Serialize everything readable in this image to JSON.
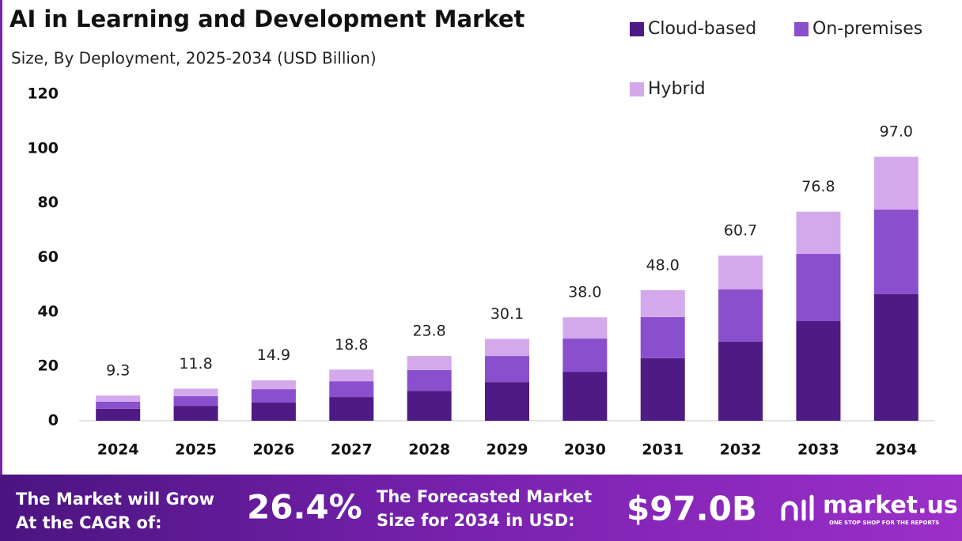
{
  "chart_data": {
    "type": "stacked-bar",
    "title": "AI in Learning and Development Market",
    "subtitle": "Size, By Deployment, 2025-2034 (USD Billion)",
    "categories": [
      "2024",
      "2025",
      "2026",
      "2027",
      "2028",
      "2029",
      "2030",
      "2031",
      "2032",
      "2033",
      "2034"
    ],
    "series": [
      {
        "name": "Cloud-based",
        "color": "#4e1a84",
        "values": [
          4.4,
          5.5,
          6.7,
          8.7,
          11.0,
          14.2,
          18.0,
          23.0,
          29.1,
          36.6,
          46.5
        ]
      },
      {
        "name": "On-premises",
        "color": "#8a4fcc",
        "values": [
          2.6,
          3.5,
          4.9,
          5.8,
          7.6,
          9.6,
          12.2,
          15.1,
          19.2,
          24.7,
          31.1
        ]
      },
      {
        "name": "Hybrid",
        "color": "#d4a9ec",
        "values": [
          2.3,
          2.8,
          3.3,
          4.3,
          5.2,
          6.3,
          7.8,
          9.9,
          12.4,
          15.5,
          19.4
        ]
      }
    ],
    "totals": {
      "values": [
        9.3,
        11.8,
        14.9,
        18.8,
        23.8,
        30.1,
        38.0,
        48.0,
        60.7,
        76.8,
        97.0
      ],
      "value_labels": [
        "9.3",
        "11.8",
        "14.9",
        "18.8",
        "23.8",
        "30.1",
        "38.0",
        "48.0",
        "60.7",
        "76.8",
        "97.0"
      ]
    },
    "ylim": [
      0,
      120
    ],
    "yticks": [
      0,
      20,
      40,
      60,
      80,
      100,
      120
    ],
    "grid": false,
    "legend": "top-right"
  },
  "footer": {
    "cagr_text": [
      "The Market will Grow",
      "At the CAGR of:"
    ],
    "cagr": "26.4%",
    "forecast_text": [
      "The Forecasted Market",
      "Size for 2034 in USD:"
    ],
    "forecast": "$97.0B",
    "brand": "market.us",
    "tagline": "ONE STOP SHOP FOR THE REPORTS"
  }
}
